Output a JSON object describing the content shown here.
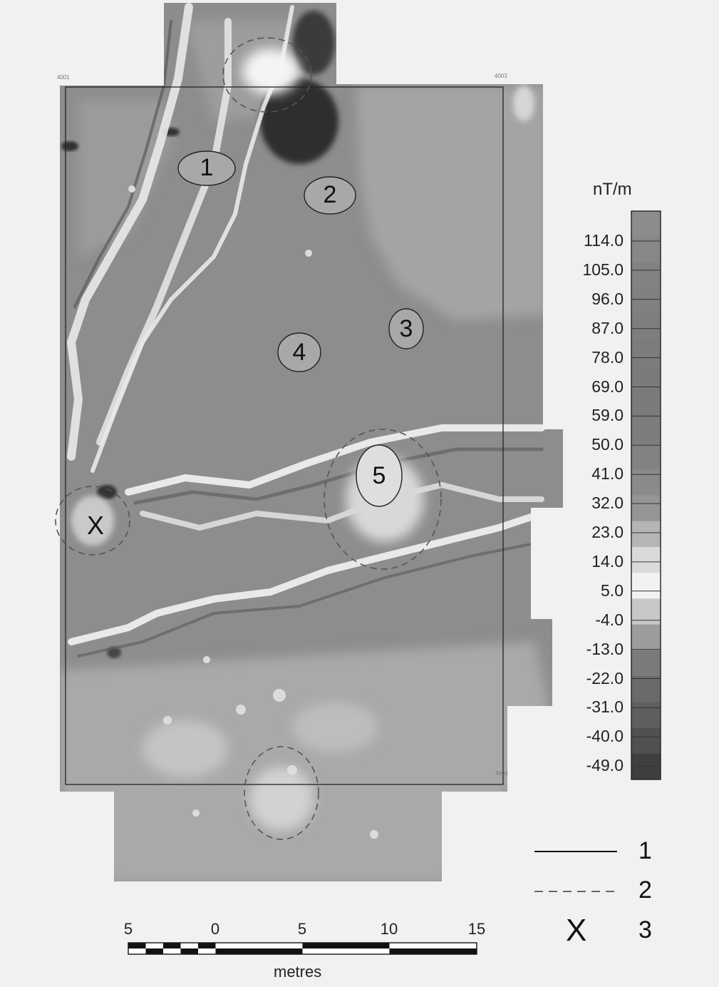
{
  "map": {
    "corner_tags": [
      "4001",
      "4003",
      "4004"
    ],
    "anomalies": [
      "1",
      "2",
      "3",
      "4",
      "5"
    ],
    "marker": "X"
  },
  "colorbar": {
    "unit": "nT/m",
    "ticks": [
      "114.0",
      "105.0",
      "96.0",
      "87.0",
      "78.0",
      "69.0",
      "59.0",
      "50.0",
      "41.0",
      "32.0",
      "23.0",
      "14.0",
      "5.0",
      "-4.0",
      "-13.0",
      "-22.0",
      "-31.0",
      "-40.0",
      "-49.0"
    ]
  },
  "scale_bar": {
    "ticks": [
      "5",
      "0",
      "5",
      "10",
      "15"
    ],
    "unit": "metres"
  },
  "legend": {
    "items": [
      {
        "symbol": "solid-line",
        "label": "1"
      },
      {
        "symbol": "dashed-line",
        "label": "2"
      },
      {
        "symbol": "X",
        "label": "3"
      }
    ]
  },
  "colors": {
    "background": "#f1f1f1",
    "map_base": "#8a8a8a",
    "high_gradient": "#e8e8e8",
    "low_gradient": "#303030"
  }
}
